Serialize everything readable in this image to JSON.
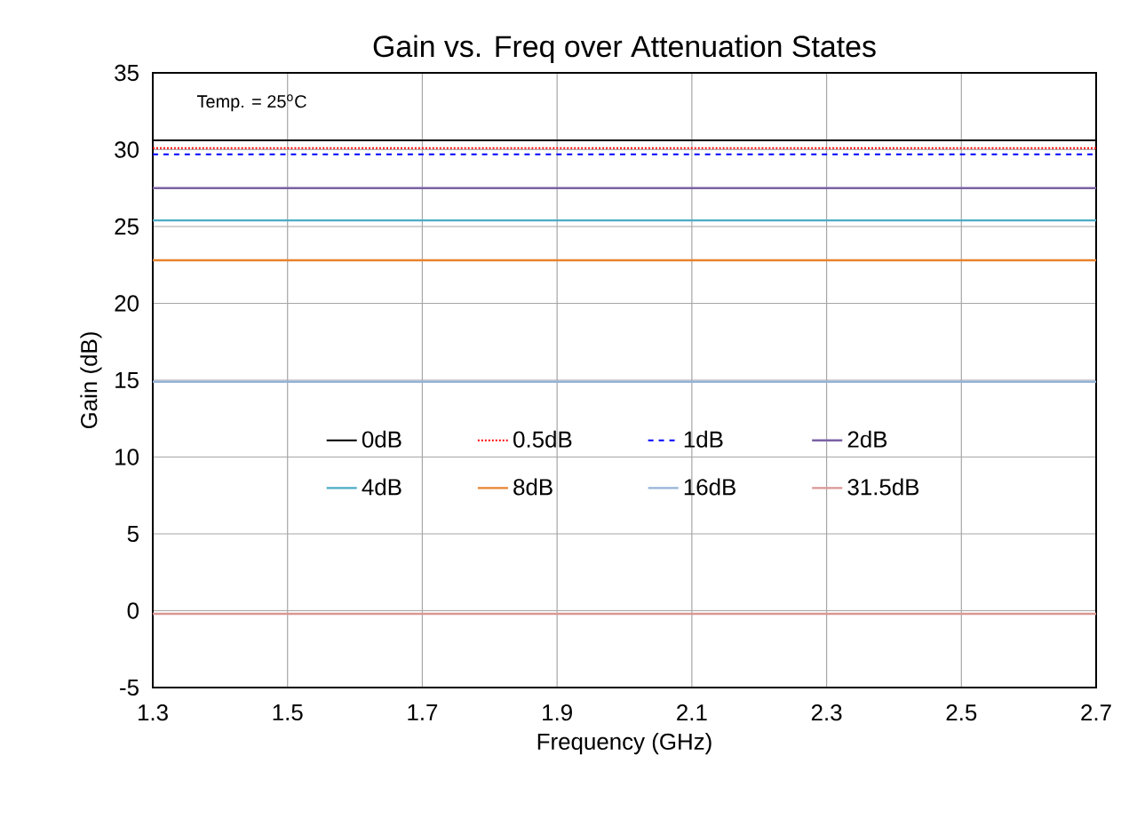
{
  "chart_data": {
    "type": "line",
    "title": "Gain vs. Freq over Attenuation States",
    "xlabel": "Frequency (GHz)",
    "ylabel": "Gain (dB)",
    "annotations": [
      "Temp. = 25$^{o}$C"
    ],
    "x": [
      1.3,
      2.7
    ],
    "series": [
      {
        "name": "0dB",
        "color": "#000000",
        "line_style": "solid",
        "values": [
          30.6,
          30.6
        ]
      },
      {
        "name": "0.5dB",
        "color": "#ff0000",
        "line_style": "dotted",
        "values": [
          30.1,
          30.1
        ]
      },
      {
        "name": "1dB",
        "color": "#0000ff",
        "line_style": "dashed",
        "values": [
          29.7,
          29.7
        ]
      },
      {
        "name": "2dB",
        "color": "#7b62a3",
        "line_style": "solid",
        "values": [
          27.5,
          27.5
        ]
      },
      {
        "name": "4dB",
        "color": "#4bacc6",
        "line_style": "solid",
        "values": [
          25.4,
          25.4
        ]
      },
      {
        "name": "8dB",
        "color": "#e8832e",
        "line_style": "solid",
        "values": [
          22.8,
          22.8
        ]
      },
      {
        "name": "16dB",
        "color": "#95b3d7",
        "line_style": "solid",
        "values": [
          14.9,
          14.9
        ]
      },
      {
        "name": "31.5dB",
        "color": "#d99694",
        "line_style": "solid",
        "values": [
          -0.2,
          -0.2
        ]
      }
    ],
    "xlim": [
      1.3,
      2.7
    ],
    "ylim": [
      -5,
      35
    ],
    "xticks": [
      1.3,
      1.5,
      1.7,
      1.9,
      2.1,
      2.3,
      2.5,
      2.7
    ],
    "yticks": [
      -5,
      0,
      5,
      10,
      15,
      20,
      25,
      30,
      35
    ],
    "grid": true,
    "legend": "center",
    "marker": "none"
  }
}
